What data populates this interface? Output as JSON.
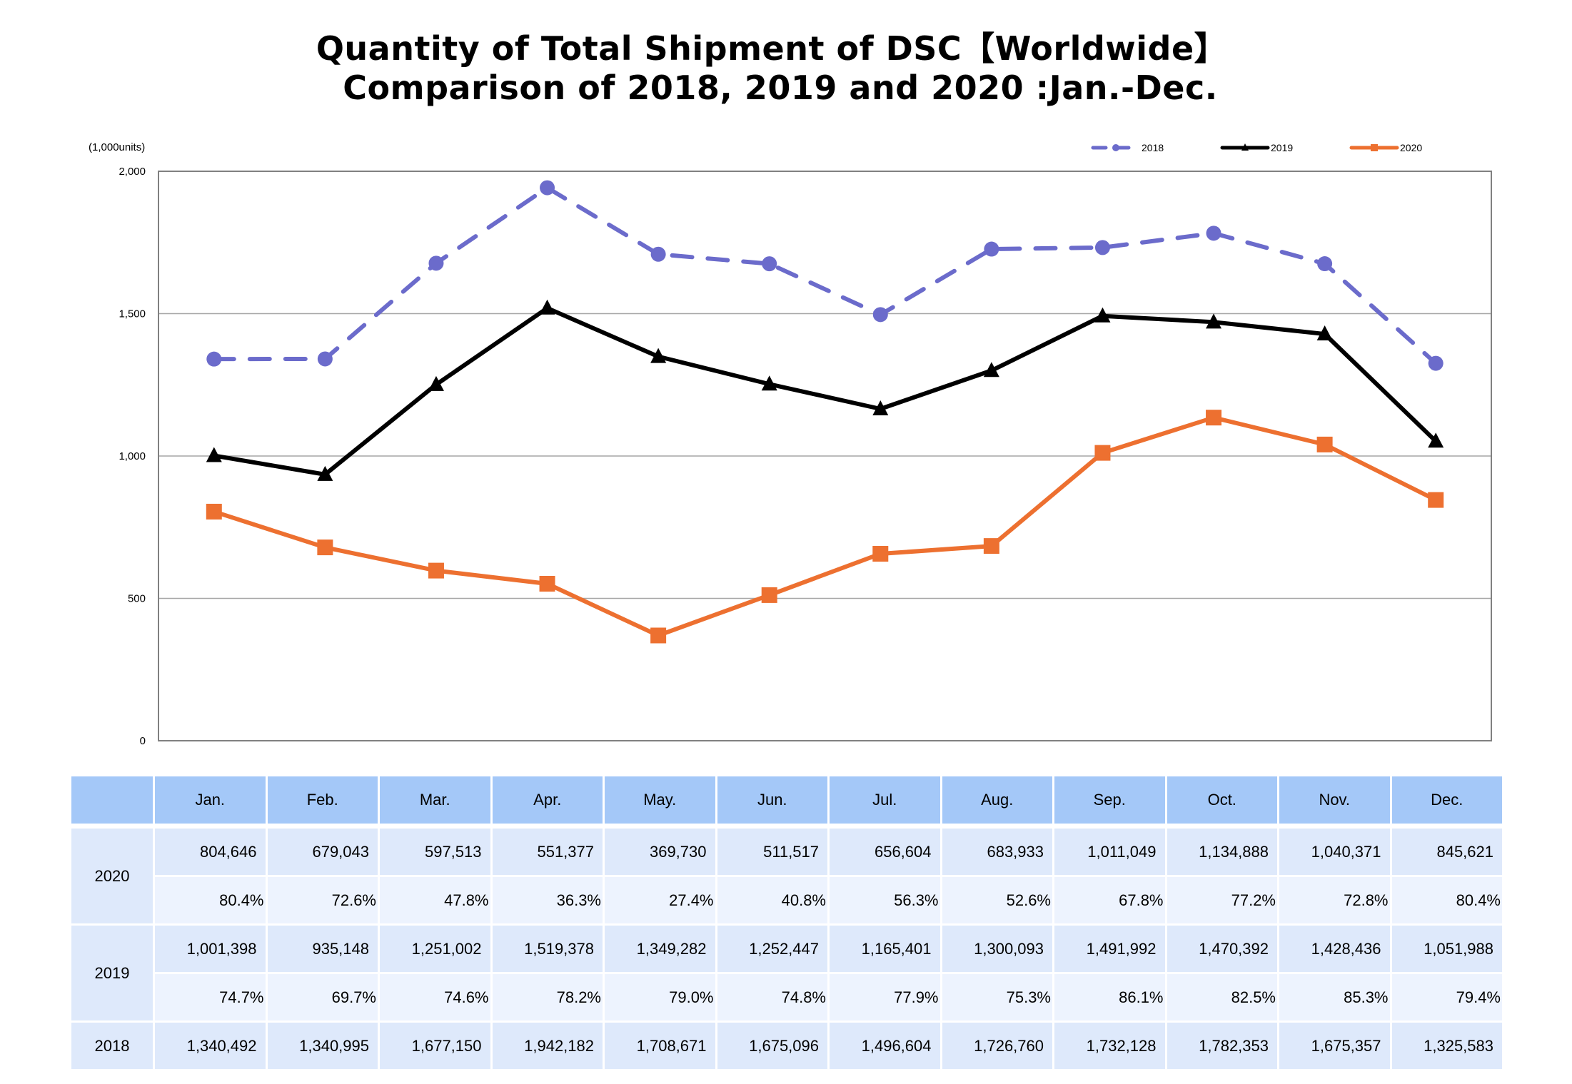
{
  "title": {
    "line1": "Quantity of Total Shipment of DSC【Worldwide】",
    "line2": "Comparison of 2018, 2019 and 2020 :Jan.-Dec."
  },
  "chart_data": {
    "type": "line",
    "title": "Quantity of Total Shipment of DSC【Worldwide】 Comparison of 2018, 2019 and 2020 :Jan.-Dec.",
    "unit_label": "(1,000units)",
    "xlabel": "",
    "ylabel": "(1,000units)",
    "ylim": [
      0,
      2000
    ],
    "yticks": [
      0,
      500,
      1000,
      1500,
      2000
    ],
    "ytick_labels": [
      "0",
      "500",
      "1,000",
      "1,500",
      "2,000"
    ],
    "grid": true,
    "legend_position": "top-right",
    "categories": [
      "Jan.",
      "Feb.",
      "Mar.",
      "Apr.",
      "May.",
      "Jun.",
      "Jul.",
      "Aug.",
      "Sep.",
      "Oct.",
      "Nov.",
      "Dec."
    ],
    "series": [
      {
        "name": "2018",
        "color": "#6b6bcb",
        "style": "dashed",
        "marker": "circle",
        "values": [
          1340.492,
          1340.995,
          1677.15,
          1942.182,
          1708.671,
          1675.096,
          1496.604,
          1726.76,
          1732.128,
          1782.353,
          1675.357,
          1325.583
        ]
      },
      {
        "name": "2019",
        "color": "#000000",
        "style": "solid",
        "marker": "triangle",
        "values": [
          1001.398,
          935.148,
          1251.002,
          1519.378,
          1349.282,
          1252.447,
          1165.401,
          1300.093,
          1491.992,
          1470.392,
          1428.436,
          1051.988
        ]
      },
      {
        "name": "2020",
        "color": "#ed7030",
        "style": "solid",
        "marker": "square",
        "values": [
          804.646,
          679.043,
          597.513,
          551.377,
          369.73,
          511.517,
          656.604,
          683.933,
          1011.049,
          1134.888,
          1040.371,
          845.621
        ]
      }
    ]
  },
  "table": {
    "header": [
      "Jan.",
      "Feb.",
      "Mar.",
      "Apr.",
      "May.",
      "Jun.",
      "Jul.",
      "Aug.",
      "Sep.",
      "Oct.",
      "Nov.",
      "Dec."
    ],
    "rows": [
      {
        "year": "2020",
        "values": [
          "804,646",
          "679,043",
          "597,513",
          "551,377",
          "369,730",
          "511,517",
          "656,604",
          "683,933",
          "1,011,049",
          "1,134,888",
          "1,040,371",
          "845,621"
        ],
        "percents": [
          "80.4%",
          "72.6%",
          "47.8%",
          "36.3%",
          "27.4%",
          "40.8%",
          "56.3%",
          "52.6%",
          "67.8%",
          "77.2%",
          "72.8%",
          "80.4%"
        ]
      },
      {
        "year": "2019",
        "values": [
          "1,001,398",
          "935,148",
          "1,251,002",
          "1,519,378",
          "1,349,282",
          "1,252,447",
          "1,165,401",
          "1,300,093",
          "1,491,992",
          "1,470,392",
          "1,428,436",
          "1,051,988"
        ],
        "percents": [
          "74.7%",
          "69.7%",
          "74.6%",
          "78.2%",
          "79.0%",
          "74.8%",
          "77.9%",
          "75.3%",
          "86.1%",
          "82.5%",
          "85.3%",
          "79.4%"
        ]
      },
      {
        "year": "2018",
        "values": [
          "1,340,492",
          "1,340,995",
          "1,677,150",
          "1,942,182",
          "1,708,671",
          "1,675,096",
          "1,496,604",
          "1,726,760",
          "1,732,128",
          "1,782,353",
          "1,675,357",
          "1,325,583"
        ]
      }
    ]
  }
}
